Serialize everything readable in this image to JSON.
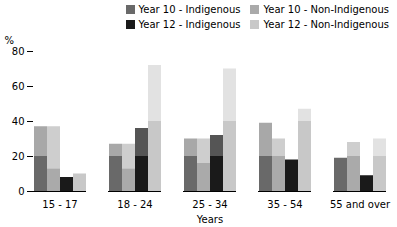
{
  "chart_data": {
    "type": "bar",
    "stacked": true,
    "xlabel": "Years",
    "ylabel": "%",
    "categories": [
      "15 - 17",
      "18 - 24",
      "25 - 34",
      "35 - 54",
      "55 and over"
    ],
    "series": [
      {
        "name": "Year 10 - Indigenous",
        "segments": [
          {
            "color": "#696969",
            "values": [
              20,
              20,
              20,
              20,
              19
            ]
          },
          {
            "color": "#a8a8a8",
            "values": [
              17,
              7,
              10,
              19,
              0
            ]
          }
        ]
      },
      {
        "name": "Year 10 - Non-Indigenous",
        "segments": [
          {
            "color": "#aaaaaa",
            "values": [
              13,
              13,
              16,
              20,
              20
            ]
          },
          {
            "color": "#cecece",
            "values": [
              24,
              14,
              14,
              10,
              8
            ]
          }
        ]
      },
      {
        "name": "Year 12 - Indigenous",
        "segments": [
          {
            "color": "#1a1a1a",
            "values": [
              8,
              20,
              20,
              18,
              9
            ]
          },
          {
            "color": "#555555",
            "values": [
              0,
              16,
              12,
              0,
              0
            ]
          }
        ]
      },
      {
        "name": "Year 12 - Non-Indigenous",
        "segments": [
          {
            "color": "#c8c8c8",
            "values": [
              10,
              40,
              40,
              40,
              20
            ]
          },
          {
            "color": "#e2e2e2",
            "values": [
              0,
              32,
              30,
              7,
              10
            ]
          }
        ]
      }
    ],
    "ylim": [
      0,
      80
    ],
    "yticks": [
      0,
      20,
      40,
      60,
      80
    ],
    "legend": "upper right"
  }
}
